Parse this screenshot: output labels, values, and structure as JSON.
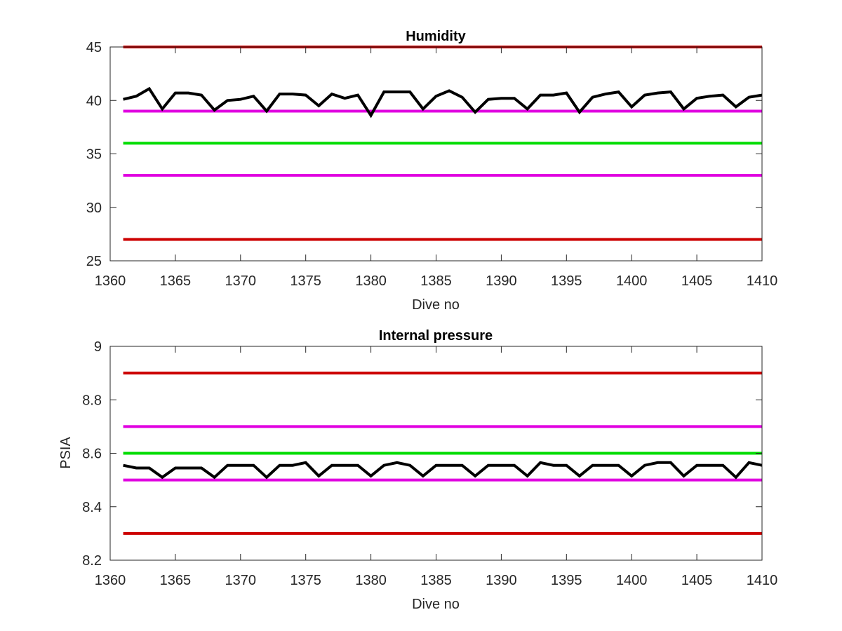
{
  "chart_data": [
    {
      "type": "line",
      "title": "Humidity",
      "xlabel": "Dive no",
      "ylabel": "",
      "xlim": [
        1360,
        1410
      ],
      "ylim": [
        25,
        45
      ],
      "xticks": [
        "1360",
        "1365",
        "1370",
        "1375",
        "1380",
        "1385",
        "1390",
        "1395",
        "1400",
        "1405",
        "1410"
      ],
      "yticks": [
        "25",
        "30",
        "35",
        "40",
        "45"
      ],
      "grid": false,
      "series": [
        {
          "role": "measurement",
          "color": "#000000",
          "x": [
            1361,
            1362,
            1363,
            1364,
            1365,
            1366,
            1367,
            1368,
            1369,
            1370,
            1371,
            1372,
            1373,
            1374,
            1375,
            1376,
            1377,
            1378,
            1379,
            1380,
            1381,
            1382,
            1383,
            1384,
            1385,
            1386,
            1387,
            1388,
            1389,
            1390,
            1391,
            1392,
            1393,
            1394,
            1395,
            1396,
            1397,
            1398,
            1399,
            1400,
            1401,
            1402,
            1403,
            1404,
            1405,
            1406,
            1407,
            1408,
            1409,
            1410
          ],
          "y": [
            40.1,
            40.4,
            41.1,
            39.2,
            40.7,
            40.7,
            40.5,
            39.1,
            40.0,
            40.1,
            40.4,
            39.0,
            40.6,
            40.6,
            40.5,
            39.5,
            40.6,
            40.2,
            40.5,
            38.6,
            40.8,
            40.8,
            40.8,
            39.2,
            40.4,
            40.9,
            40.3,
            38.9,
            40.1,
            40.2,
            40.2,
            39.2,
            40.5,
            40.5,
            40.7,
            38.9,
            40.3,
            40.6,
            40.8,
            39.4,
            40.5,
            40.7,
            40.8,
            39.2,
            40.2,
            40.4,
            40.5,
            39.4,
            40.3,
            40.5
          ]
        },
        {
          "role": "limit",
          "color": "#cc0000",
          "y": 45
        },
        {
          "role": "limit",
          "color": "#e000e0",
          "y": 39
        },
        {
          "role": "limit",
          "color": "#00dd00",
          "y": 36
        },
        {
          "role": "limit",
          "color": "#e000e0",
          "y": 33
        },
        {
          "role": "limit",
          "color": "#cc0000",
          "y": 27
        }
      ]
    },
    {
      "type": "line",
      "title": "Internal pressure",
      "xlabel": "Dive no",
      "ylabel": "PSIA",
      "xlim": [
        1360,
        1410
      ],
      "ylim": [
        8.2,
        9
      ],
      "xticks": [
        "1360",
        "1365",
        "1370",
        "1375",
        "1380",
        "1385",
        "1390",
        "1395",
        "1400",
        "1405",
        "1410"
      ],
      "yticks": [
        "8.2",
        "8.4",
        "8.6",
        "8.8",
        "9"
      ],
      "grid": false,
      "series": [
        {
          "role": "measurement",
          "color": "#000000",
          "x": [
            1361,
            1362,
            1363,
            1364,
            1365,
            1366,
            1367,
            1368,
            1369,
            1370,
            1371,
            1372,
            1373,
            1374,
            1375,
            1376,
            1377,
            1378,
            1379,
            1380,
            1381,
            1382,
            1383,
            1384,
            1385,
            1386,
            1387,
            1388,
            1389,
            1390,
            1391,
            1392,
            1393,
            1394,
            1395,
            1396,
            1397,
            1398,
            1399,
            1400,
            1401,
            1402,
            1403,
            1404,
            1405,
            1406,
            1407,
            1408,
            1409,
            1410
          ],
          "y": [
            8.555,
            8.545,
            8.545,
            8.51,
            8.545,
            8.545,
            8.545,
            8.51,
            8.555,
            8.555,
            8.555,
            8.51,
            8.555,
            8.555,
            8.565,
            8.515,
            8.555,
            8.555,
            8.555,
            8.515,
            8.555,
            8.565,
            8.555,
            8.515,
            8.555,
            8.555,
            8.555,
            8.515,
            8.555,
            8.555,
            8.555,
            8.515,
            8.565,
            8.555,
            8.555,
            8.515,
            8.555,
            8.555,
            8.555,
            8.515,
            8.555,
            8.565,
            8.565,
            8.515,
            8.555,
            8.555,
            8.555,
            8.51,
            8.565,
            8.555
          ]
        },
        {
          "role": "limit",
          "color": "#cc0000",
          "y": 8.9
        },
        {
          "role": "limit",
          "color": "#e000e0",
          "y": 8.7
        },
        {
          "role": "limit",
          "color": "#00dd00",
          "y": 8.6
        },
        {
          "role": "limit",
          "color": "#e000e0",
          "y": 8.5
        },
        {
          "role": "limit",
          "color": "#cc0000",
          "y": 8.3
        }
      ]
    }
  ]
}
